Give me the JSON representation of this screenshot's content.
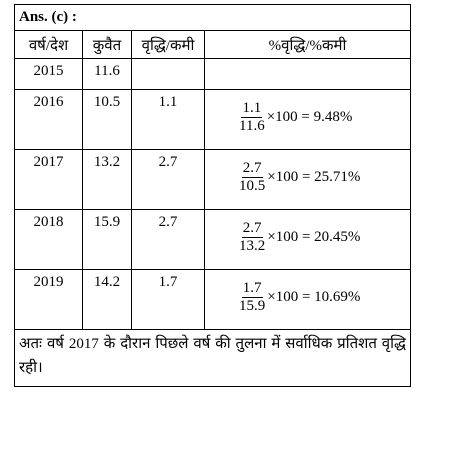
{
  "header": {
    "title": "Ans. (c) :"
  },
  "table": {
    "columns": [
      "वर्ष/देश",
      "कुवैत",
      "वृद्धि/कमी",
      "%वृद्धि/%कमी"
    ],
    "rows": [
      {
        "year": "2015",
        "value": "11.6"
      },
      {
        "year": "2016",
        "value": "10.5",
        "change": "1.1",
        "numerator": "1.1",
        "denominator": "11.6",
        "result": "×100 = 9.48%"
      },
      {
        "year": "2017",
        "value": "13.2",
        "change": "2.7",
        "numerator": "2.7",
        "denominator": "10.5",
        "result": "×100 = 25.71%"
      },
      {
        "year": "2018",
        "value": "15.9",
        "change": "2.7",
        "numerator": "2.7",
        "denominator": "13.2",
        "result": "×100 = 20.45%"
      },
      {
        "year": "2019",
        "value": "14.2",
        "change": "1.7",
        "numerator": "1.7",
        "denominator": "15.9",
        "result": "×100 = 10.69%"
      }
    ]
  },
  "footer": {
    "text": "अतः वर्ष 2017 के दौरान पिछले वर्ष की तुलना में सर्वाधिक प्रतिशत वृद्धि रही।"
  }
}
